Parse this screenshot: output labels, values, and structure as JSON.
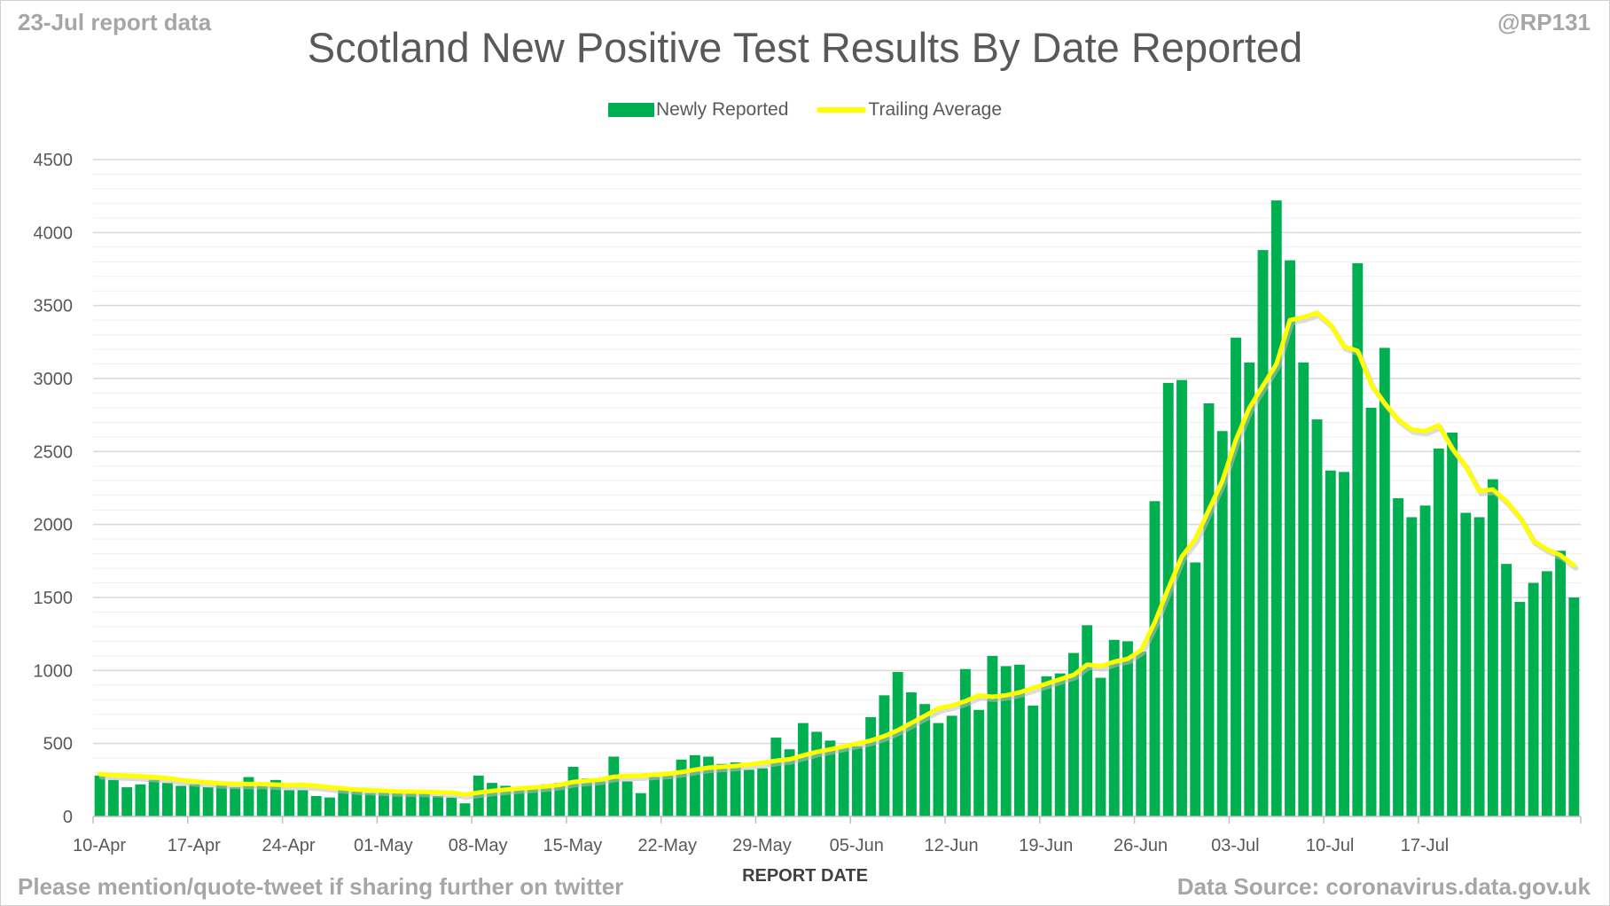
{
  "corner_left": "23-Jul report data",
  "corner_right": "@RP131",
  "footer_left": "Please mention/quote-tweet if sharing further on twitter",
  "footer_right": "Data Source: coronavirus.data.gov.uk",
  "colors": {
    "bars": "#00b050",
    "average": "#ffff00",
    "average_shadow": "#bfbfbf",
    "grid": "#d9d9d9",
    "text": "#595959"
  },
  "chart_data": {
    "type": "bar",
    "title": "Scotland New Positive Test Results By Date Reported",
    "xlabel": "REPORT DATE",
    "ylabel": "",
    "ylim": [
      0,
      4500
    ],
    "yticks": [
      0,
      500,
      1000,
      1500,
      2000,
      2500,
      3000,
      3500,
      4000,
      4500
    ],
    "grid": true,
    "legend_position": "top-center",
    "xstart": "2021-04-10",
    "xend": "2021-07-23",
    "xtick_labels": [
      "10-Apr",
      "17-Apr",
      "24-Apr",
      "01-May",
      "08-May",
      "15-May",
      "22-May",
      "29-May",
      "05-Jun",
      "12-Jun",
      "19-Jun",
      "26-Jun",
      "03-Jul",
      "10-Jul",
      "17-Jul"
    ],
    "series": [
      {
        "name": "Newly Reported",
        "kind": "bar",
        "values": [
          280,
          250,
          200,
          220,
          250,
          230,
          210,
          220,
          200,
          230,
          200,
          270,
          220,
          250,
          180,
          180,
          140,
          130,
          180,
          170,
          160,
          170,
          160,
          170,
          160,
          140,
          130,
          90,
          280,
          230,
          210,
          190,
          210,
          220,
          230,
          340,
          260,
          240,
          410,
          240,
          160,
          270,
          280,
          390,
          420,
          410,
          360,
          370,
          320,
          330,
          540,
          460,
          640,
          580,
          520,
          480,
          480,
          680,
          830,
          990,
          850,
          770,
          640,
          690,
          1010,
          730,
          1100,
          1030,
          1040,
          760,
          960,
          980,
          1120,
          1310,
          950,
          1210,
          1200,
          1130,
          2160,
          2970,
          2990,
          1740,
          2830,
          2640,
          3280,
          3110,
          3880,
          4220,
          3810,
          3110,
          2720,
          2370,
          2360,
          3790,
          2800,
          3210,
          2180,
          2050,
          2130,
          2520,
          2630,
          2080,
          2050,
          2310,
          1730,
          1470,
          1600,
          1680,
          1820,
          1500
        ]
      },
      {
        "name": "Trailing Average",
        "kind": "line",
        "values": [
          290,
          284,
          280,
          276,
          270,
          262,
          250,
          240,
          234,
          226,
          224,
          222,
          222,
          218,
          215,
          216,
          210,
          200,
          192,
          184,
          180,
          176,
          172,
          170,
          168,
          166,
          164,
          150,
          164,
          175,
          184,
          192,
          198,
          206,
          216,
          236,
          244,
          252,
          272,
          278,
          280,
          286,
          292,
          304,
          320,
          334,
          340,
          346,
          356,
          368,
          382,
          392,
          418,
          442,
          460,
          480,
          500,
          520,
          550,
          590,
          640,
          690,
          740,
          760,
          790,
          830,
          820,
          830,
          850,
          880,
          910,
          940,
          970,
          1040,
          1030,
          1060,
          1080,
          1140,
          1330,
          1560,
          1780,
          1900,
          2100,
          2300,
          2580,
          2800,
          2950,
          3100,
          3400,
          3420,
          3450,
          3370,
          3220,
          3190,
          2960,
          2830,
          2720,
          2650,
          2640,
          2680,
          2520,
          2400,
          2230,
          2240,
          2160,
          2050,
          1890,
          1830,
          1790,
          1720
        ]
      }
    ]
  }
}
